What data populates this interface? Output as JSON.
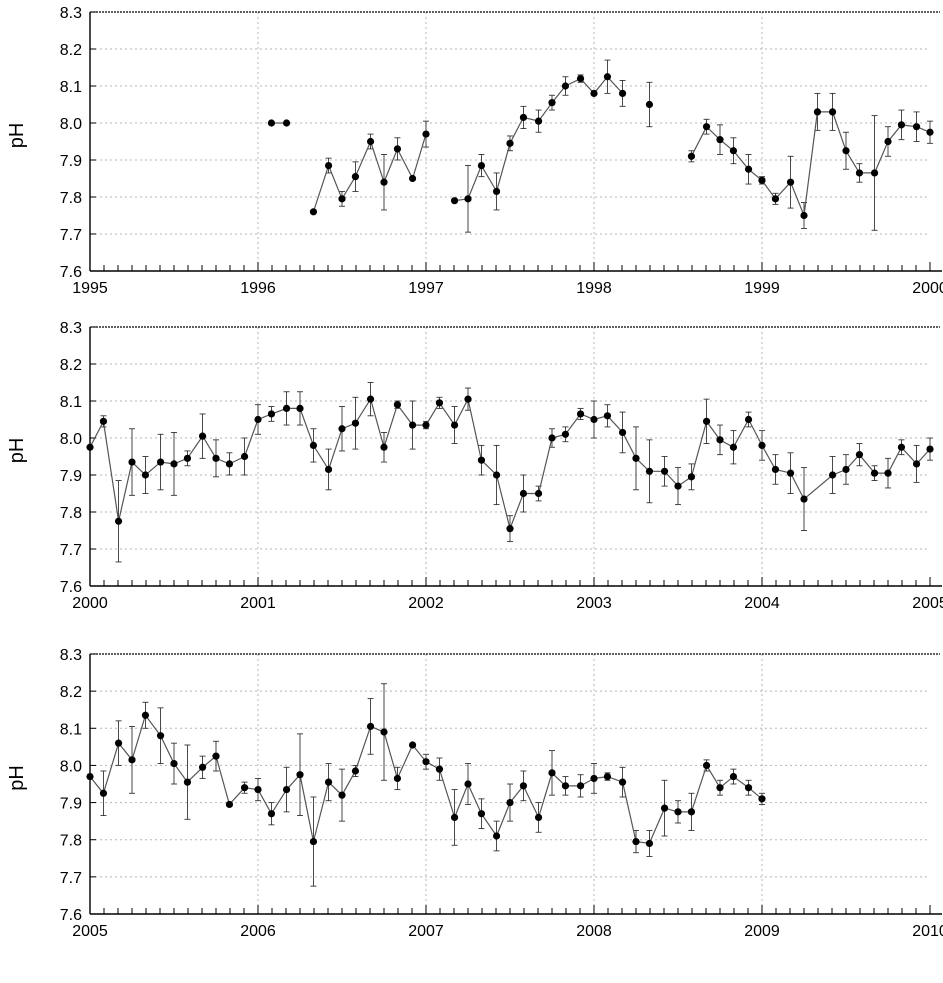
{
  "chart_data": [
    {
      "type": "line",
      "ylabel": "pH",
      "xlim": [
        1995,
        2000
      ],
      "ylim": [
        7.6,
        8.3
      ],
      "xticks": [
        "1995",
        "1996",
        "1997",
        "1998",
        "1999",
        "2000"
      ],
      "yticks": [
        "7.6",
        "7.7",
        "7.8",
        "7.9",
        "8.0",
        "8.1",
        "8.2",
        "8.3"
      ],
      "grid": true,
      "series": [
        {
          "x": [
            1996.08,
            1996.17,
            1996.33,
            1996.42,
            1996.5,
            1996.58,
            1996.67,
            1996.75,
            1996.83,
            1996.92,
            1997.0,
            1997.17,
            1997.25,
            1997.33,
            1997.42,
            1997.5,
            1997.58,
            1997.67,
            1997.75,
            1997.83,
            1997.92,
            1998.0,
            1998.08,
            1998.17,
            1998.33,
            1998.58,
            1998.67,
            1998.75,
            1998.83,
            1998.92,
            1999.0,
            1999.08,
            1999.17,
            1999.25,
            1999.33,
            1999.42,
            1999.5,
            1999.58,
            1999.67,
            1999.75,
            1999.83,
            1999.92,
            2000.0
          ],
          "y": [
            8.0,
            8.0,
            7.76,
            7.885,
            7.795,
            7.855,
            7.95,
            7.84,
            7.93,
            7.85,
            7.97,
            7.79,
            7.795,
            7.885,
            7.815,
            7.945,
            8.015,
            8.005,
            8.055,
            8.1,
            8.12,
            8.08,
            8.125,
            8.08,
            8.05,
            7.91,
            7.99,
            7.955,
            7.925,
            7.875,
            7.845,
            7.795,
            7.84,
            7.75,
            8.03,
            8.03,
            7.925,
            7.865,
            7.865,
            7.95,
            7.995,
            7.99,
            7.975
          ],
          "err": [
            0,
            0,
            0,
            0.02,
            0.02,
            0.04,
            0.02,
            0.075,
            0.03,
            0,
            0.035,
            0,
            0.09,
            0.03,
            0.05,
            0.02,
            0.03,
            0.03,
            0.02,
            0.025,
            0.01,
            0,
            0.045,
            0.035,
            0.06,
            0.015,
            0.02,
            0.04,
            0.035,
            0.04,
            0.01,
            0.015,
            0.07,
            0.035,
            0.05,
            0.05,
            0.05,
            0.025,
            0.155,
            0.04,
            0.04,
            0.04,
            0.03
          ],
          "segments": [
            [
              0,
              1
            ],
            [
              2,
              10
            ],
            [
              11,
              23
            ],
            [
              24,
              24
            ],
            [
              25,
              42
            ]
          ]
        }
      ]
    },
    {
      "type": "line",
      "ylabel": "pH",
      "xlim": [
        2000,
        2005
      ],
      "ylim": [
        7.6,
        8.3
      ],
      "xticks": [
        "2000",
        "2001",
        "2002",
        "2003",
        "2004",
        "2005"
      ],
      "yticks": [
        "7.6",
        "7.7",
        "7.8",
        "7.9",
        "8.0",
        "8.1",
        "8.2",
        "8.3"
      ],
      "grid": true,
      "series": [
        {
          "x": [
            2000.0,
            2000.08,
            2000.17,
            2000.25,
            2000.33,
            2000.42,
            2000.5,
            2000.58,
            2000.67,
            2000.75,
            2000.83,
            2000.92,
            2001.0,
            2001.08,
            2001.17,
            2001.25,
            2001.33,
            2001.42,
            2001.5,
            2001.58,
            2001.67,
            2001.75,
            2001.83,
            2001.92,
            2002.0,
            2002.08,
            2002.17,
            2002.25,
            2002.33,
            2002.42,
            2002.5,
            2002.58,
            2002.67,
            2002.75,
            2002.83,
            2002.92,
            2003.0,
            2003.08,
            2003.17,
            2003.25,
            2003.33,
            2003.42,
            2003.5,
            2003.58,
            2003.67,
            2003.75,
            2003.83,
            2003.92,
            2004.0,
            2004.08,
            2004.17,
            2004.25,
            2004.42,
            2004.5,
            2004.58,
            2004.67,
            2004.75,
            2004.83,
            2004.92,
            2005.0
          ],
          "y": [
            7.975,
            8.045,
            7.775,
            7.935,
            7.9,
            7.935,
            7.93,
            7.945,
            8.005,
            7.945,
            7.93,
            7.95,
            8.05,
            8.065,
            8.08,
            8.08,
            7.98,
            7.915,
            8.025,
            8.04,
            8.105,
            7.975,
            8.09,
            8.035,
            8.035,
            8.095,
            8.035,
            8.105,
            7.94,
            7.9,
            7.755,
            7.85,
            7.85,
            8.0,
            8.01,
            8.065,
            8.05,
            8.06,
            8.015,
            7.945,
            7.91,
            7.91,
            7.87,
            7.895,
            8.045,
            7.995,
            7.975,
            8.05,
            7.98,
            7.915,
            7.905,
            7.835,
            7.9,
            7.915,
            7.955,
            7.905,
            7.905,
            7.975,
            7.93,
            7.97
          ],
          "err": [
            0,
            0.015,
            0.11,
            0.09,
            0.05,
            0.075,
            0.085,
            0.02,
            0.06,
            0.05,
            0.03,
            0.05,
            0.04,
            0.02,
            0.045,
            0.045,
            0.045,
            0.055,
            0.06,
            0.07,
            0.045,
            0.04,
            0.01,
            0.065,
            0.01,
            0.015,
            0.05,
            0.03,
            0.04,
            0.08,
            0.035,
            0.05,
            0.02,
            0.025,
            0.02,
            0.015,
            0.05,
            0.03,
            0.055,
            0.085,
            0.085,
            0.04,
            0.05,
            0.035,
            0.06,
            0.04,
            0.045,
            0.02,
            0.04,
            0.04,
            0.055,
            0.085,
            0.05,
            0.04,
            0.03,
            0.02,
            0.04,
            0.02,
            0.05,
            0.03
          ],
          "segments": [
            [
              0,
              59
            ]
          ]
        }
      ]
    },
    {
      "type": "line",
      "ylabel": "pH",
      "xlim": [
        2005,
        2010
      ],
      "ylim": [
        7.6,
        8.3
      ],
      "xticks": [
        "2005",
        "2006",
        "2007",
        "2008",
        "2009",
        "2010"
      ],
      "yticks": [
        "7.6",
        "7.7",
        "7.8",
        "7.9",
        "8.0",
        "8.1",
        "8.2",
        "8.3"
      ],
      "grid": true,
      "series": [
        {
          "x": [
            2005.0,
            2005.08,
            2005.17,
            2005.25,
            2005.33,
            2005.42,
            2005.5,
            2005.58,
            2005.67,
            2005.75,
            2005.83,
            2005.92,
            2006.0,
            2006.08,
            2006.17,
            2006.25,
            2006.33,
            2006.42,
            2006.5,
            2006.58,
            2006.67,
            2006.75,
            2006.83,
            2006.92,
            2007.0,
            2007.08,
            2007.17,
            2007.25,
            2007.33,
            2007.42,
            2007.5,
            2007.58,
            2007.67,
            2007.75,
            2007.83,
            2007.92,
            2008.0,
            2008.08,
            2008.17,
            2008.25,
            2008.33,
            2008.42,
            2008.5,
            2008.58,
            2008.67,
            2008.75,
            2008.83,
            2008.92,
            2009.0
          ],
          "y": [
            7.97,
            7.925,
            8.06,
            8.015,
            8.135,
            8.08,
            8.005,
            7.955,
            7.995,
            8.025,
            7.895,
            7.94,
            7.935,
            7.87,
            7.935,
            7.975,
            7.795,
            7.955,
            7.92,
            7.985,
            8.105,
            8.09,
            7.965,
            8.055,
            8.01,
            7.99,
            7.86,
            7.95,
            7.87,
            7.81,
            7.9,
            7.945,
            7.86,
            7.98,
            7.945,
            7.945,
            7.965,
            7.97,
            7.955,
            7.795,
            7.79,
            7.885,
            7.875,
            7.875,
            8.0,
            7.94,
            7.97,
            7.94,
            7.91
          ],
          "err": [
            0,
            0.06,
            0.06,
            0.09,
            0.035,
            0.075,
            0.055,
            0.1,
            0.03,
            0.04,
            0.005,
            0.015,
            0.03,
            0.03,
            0.06,
            0.11,
            0.12,
            0.05,
            0.07,
            0.015,
            0.075,
            0.13,
            0.03,
            0.005,
            0.02,
            0.03,
            0.075,
            0.055,
            0.04,
            0.04,
            0.05,
            0.04,
            0.04,
            0.06,
            0.025,
            0.03,
            0.04,
            0.01,
            0.04,
            0.03,
            0.035,
            0.075,
            0.03,
            0.05,
            0.015,
            0.02,
            0.02,
            0.02,
            0.015
          ],
          "segments": [
            [
              0,
              48
            ]
          ]
        }
      ]
    }
  ]
}
